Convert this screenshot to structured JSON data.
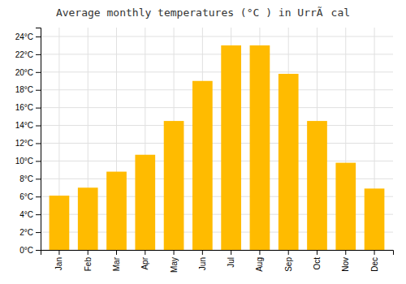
{
  "chart_data": {
    "type": "bar",
    "title": "Average monthly temperatures (°C ) in UrrÃcal",
    "categories": [
      "Jan",
      "Feb",
      "Mar",
      "Apr",
      "May",
      "Jun",
      "Jul",
      "Aug",
      "Sep",
      "Oct",
      "Nov",
      "Dec"
    ],
    "values": [
      6.1,
      7.0,
      8.8,
      10.7,
      14.5,
      19.0,
      23.0,
      23.0,
      19.8,
      14.5,
      9.8,
      6.9
    ],
    "color": "#FFBB00",
    "ylim": [
      0,
      25
    ],
    "yticks": [
      {
        "value": 0,
        "label": "0°C"
      },
      {
        "value": 2,
        "label": "2°C"
      },
      {
        "value": 4,
        "label": "4°C"
      },
      {
        "value": 6,
        "label": "6°C"
      },
      {
        "value": 8,
        "label": "8°C"
      },
      {
        "value": 10,
        "label": "10°C"
      },
      {
        "value": 12,
        "label": "12°C"
      },
      {
        "value": 14,
        "label": "14°C"
      },
      {
        "value": 16,
        "label": "16°C"
      },
      {
        "value": 18,
        "label": "18°C"
      },
      {
        "value": 20,
        "label": "20°C"
      },
      {
        "value": 22,
        "label": "22°C"
      },
      {
        "value": 24,
        "label": "24°C"
      }
    ],
    "grid": true
  }
}
